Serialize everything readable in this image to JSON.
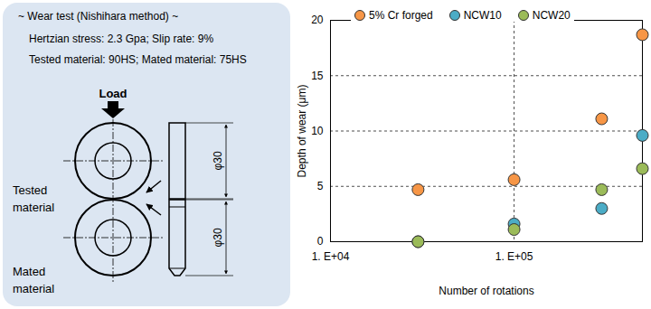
{
  "panel": {
    "title": "~ Wear test (Nishihara method) ~",
    "lines": [
      "Hertzian stress: 2.3 Gpa; Slip rate: 9%",
      "Tested material: 90HS; Mated material: 75HS"
    ],
    "load": "Load",
    "tested_label": [
      "Tested",
      "material"
    ],
    "mated_label": [
      "Mated",
      "material"
    ],
    "dimensions": [
      "φ30",
      "φ30"
    ]
  },
  "chart_data": {
    "type": "scatter",
    "x_label": "Number of rotations",
    "y_label": "Depth of wear (μm)",
    "x": [
      30000,
      100000,
      300000,
      500000
    ],
    "series": [
      {
        "name": "5% Cr forged",
        "color": "#f79646",
        "marker": "circle",
        "values": [
          4.7,
          5.6,
          11.1,
          18.7
        ]
      },
      {
        "name": "NCW10",
        "color": "#4bacc6",
        "marker": "circle",
        "values": [
          0,
          1.6,
          3.0,
          9.6
        ]
      },
      {
        "name": "NCW20",
        "color": "#9bbb59",
        "marker": "circle",
        "values": [
          0,
          1.1,
          4.7,
          6.6
        ]
      }
    ],
    "log": "x",
    "xlim": [
      10000,
      500000
    ],
    "xticks": [
      {
        "value": 10000,
        "label": "1. E+04"
      },
      {
        "value": 100000,
        "label": "1. E+05"
      }
    ],
    "ylim": [
      0,
      20
    ],
    "yticks": [
      0,
      5,
      10,
      15,
      20
    ],
    "grid": true,
    "legend": "top"
  }
}
